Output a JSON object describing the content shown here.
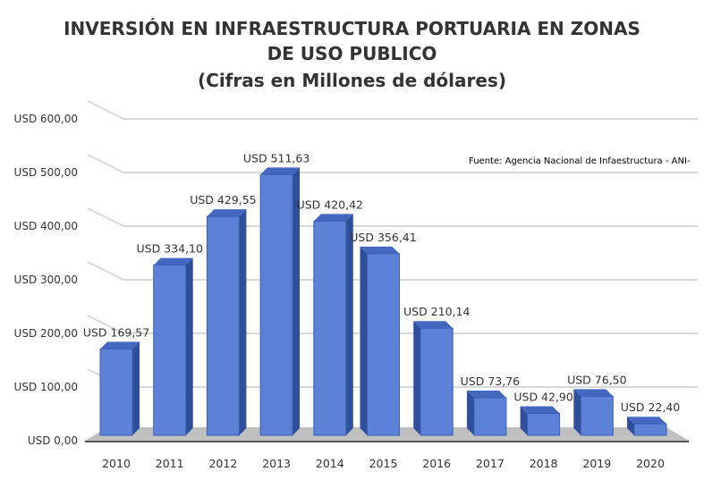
{
  "chart_data": {
    "type": "bar",
    "title_lines": [
      "INVERSIÓN EN INFRAESTRUCTURA PORTUARIA EN ZONAS",
      "DE USO PUBLICO",
      "(Cifras en Millones de dólares)"
    ],
    "source": "Fuente: Agencia Nacional de Infaestructura - ANI-",
    "categories": [
      "2010",
      "2011",
      "2012",
      "2013",
      "2014",
      "2015",
      "2016",
      "2017",
      "2018",
      "2019",
      "2020"
    ],
    "values": [
      169.57,
      334.1,
      429.55,
      511.63,
      420.42,
      356.41,
      210.14,
      73.76,
      42.9,
      76.5,
      22.4
    ],
    "data_labels": [
      "USD 169,57",
      "USD 334,10",
      "USD 429,55",
      "USD 511,63",
      "USD 420,42",
      "USD 356,41",
      "USD 210,14",
      "USD 73,76",
      "USD 42,90",
      "USD 76,50",
      "USD 22,40"
    ],
    "y_ticks": [
      0,
      100,
      200,
      300,
      400,
      500,
      600
    ],
    "y_tick_labels": [
      "USD 0,00",
      "USD 100,00",
      "USD 200,00",
      "USD 300,00",
      "USD 400,00",
      "USD 500,00",
      "USD 600,00"
    ],
    "ylim": [
      0,
      600
    ],
    "grid": true,
    "style": "3d-column",
    "colors": {
      "bar": "#5b82d6",
      "bar_side": "#2f4f9a",
      "bar_top": "#4468c0",
      "floor": "#bfbfbf",
      "grid": "#d9d9d9"
    }
  }
}
